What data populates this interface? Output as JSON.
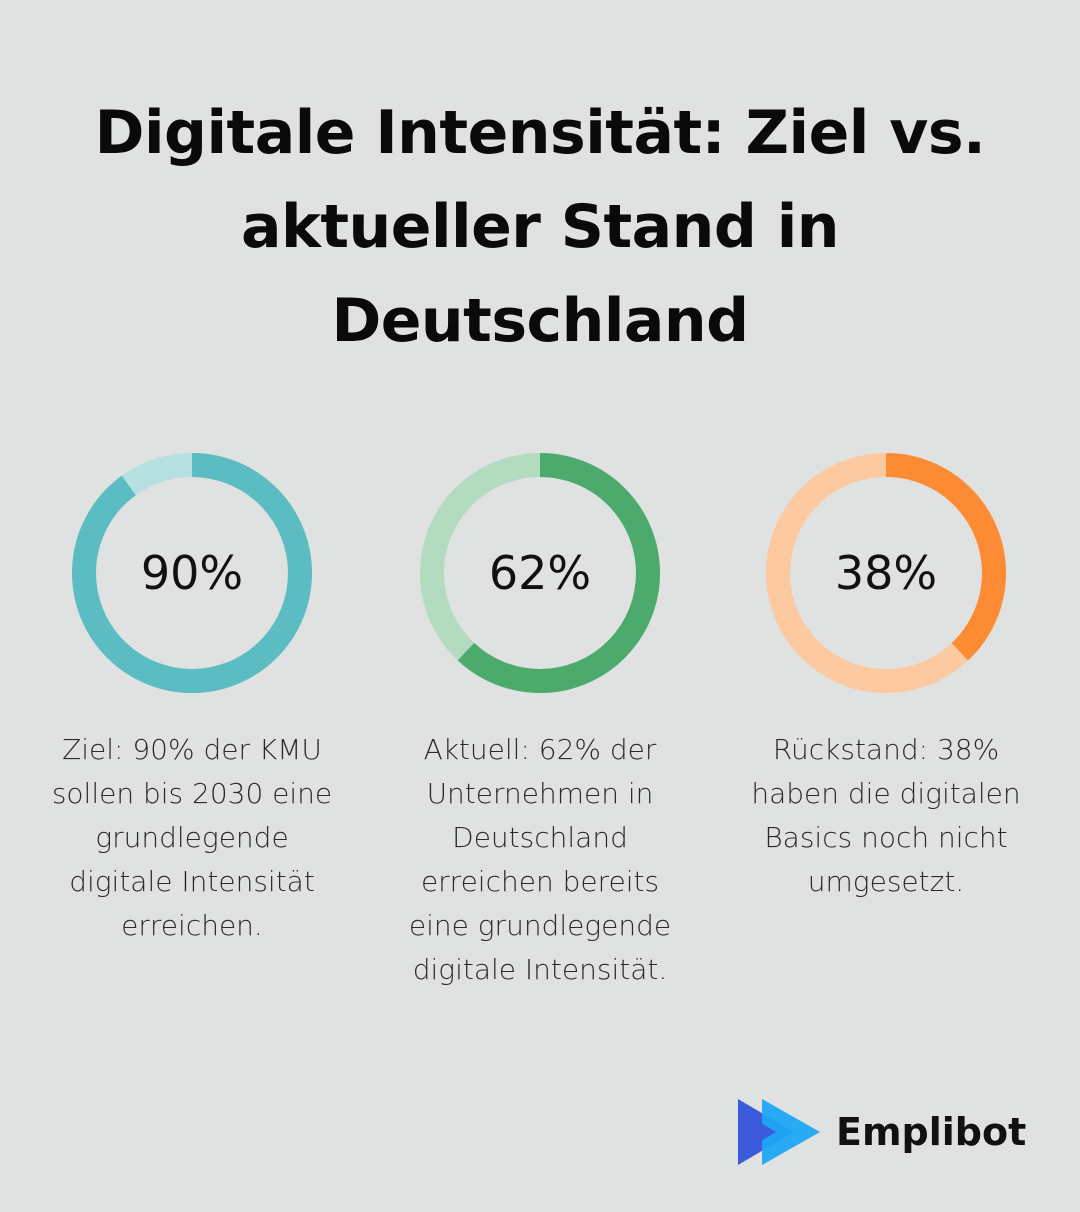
{
  "title": "Digitale Intensität: Ziel vs. aktueller Stand in Deutschland",
  "chart_data": {
    "type": "donut",
    "title": "Digitale Intensität: Ziel vs. aktueller Stand in Deutschland",
    "items": [
      {
        "value": 90,
        "label": "90%",
        "description": "Ziel: 90% der KMU sollen bis 2030 eine grundlegende digitale Intensität erreichen.",
        "color": "#5bbcc1",
        "track_color": "#b6e0e2"
      },
      {
        "value": 62,
        "label": "62%",
        "description": "Aktuell: 62% der Unternehmen in Deutschland erreichen bereits eine grundlegende digitale Intensität.",
        "color": "#4daa6d",
        "track_color": "#b2dbc0"
      },
      {
        "value": 38,
        "label": "38%",
        "description": "Rückstand: 38% haben die digitalen Basics noch nicht umgesetzt.",
        "color": "#fd8b34",
        "track_color": "#fdc9a1"
      }
    ]
  },
  "brand": {
    "name": "Emplibot",
    "logo_icon": "play-arrow-logo",
    "colors": [
      "#3b5bdb",
      "#1ea7f4"
    ]
  }
}
